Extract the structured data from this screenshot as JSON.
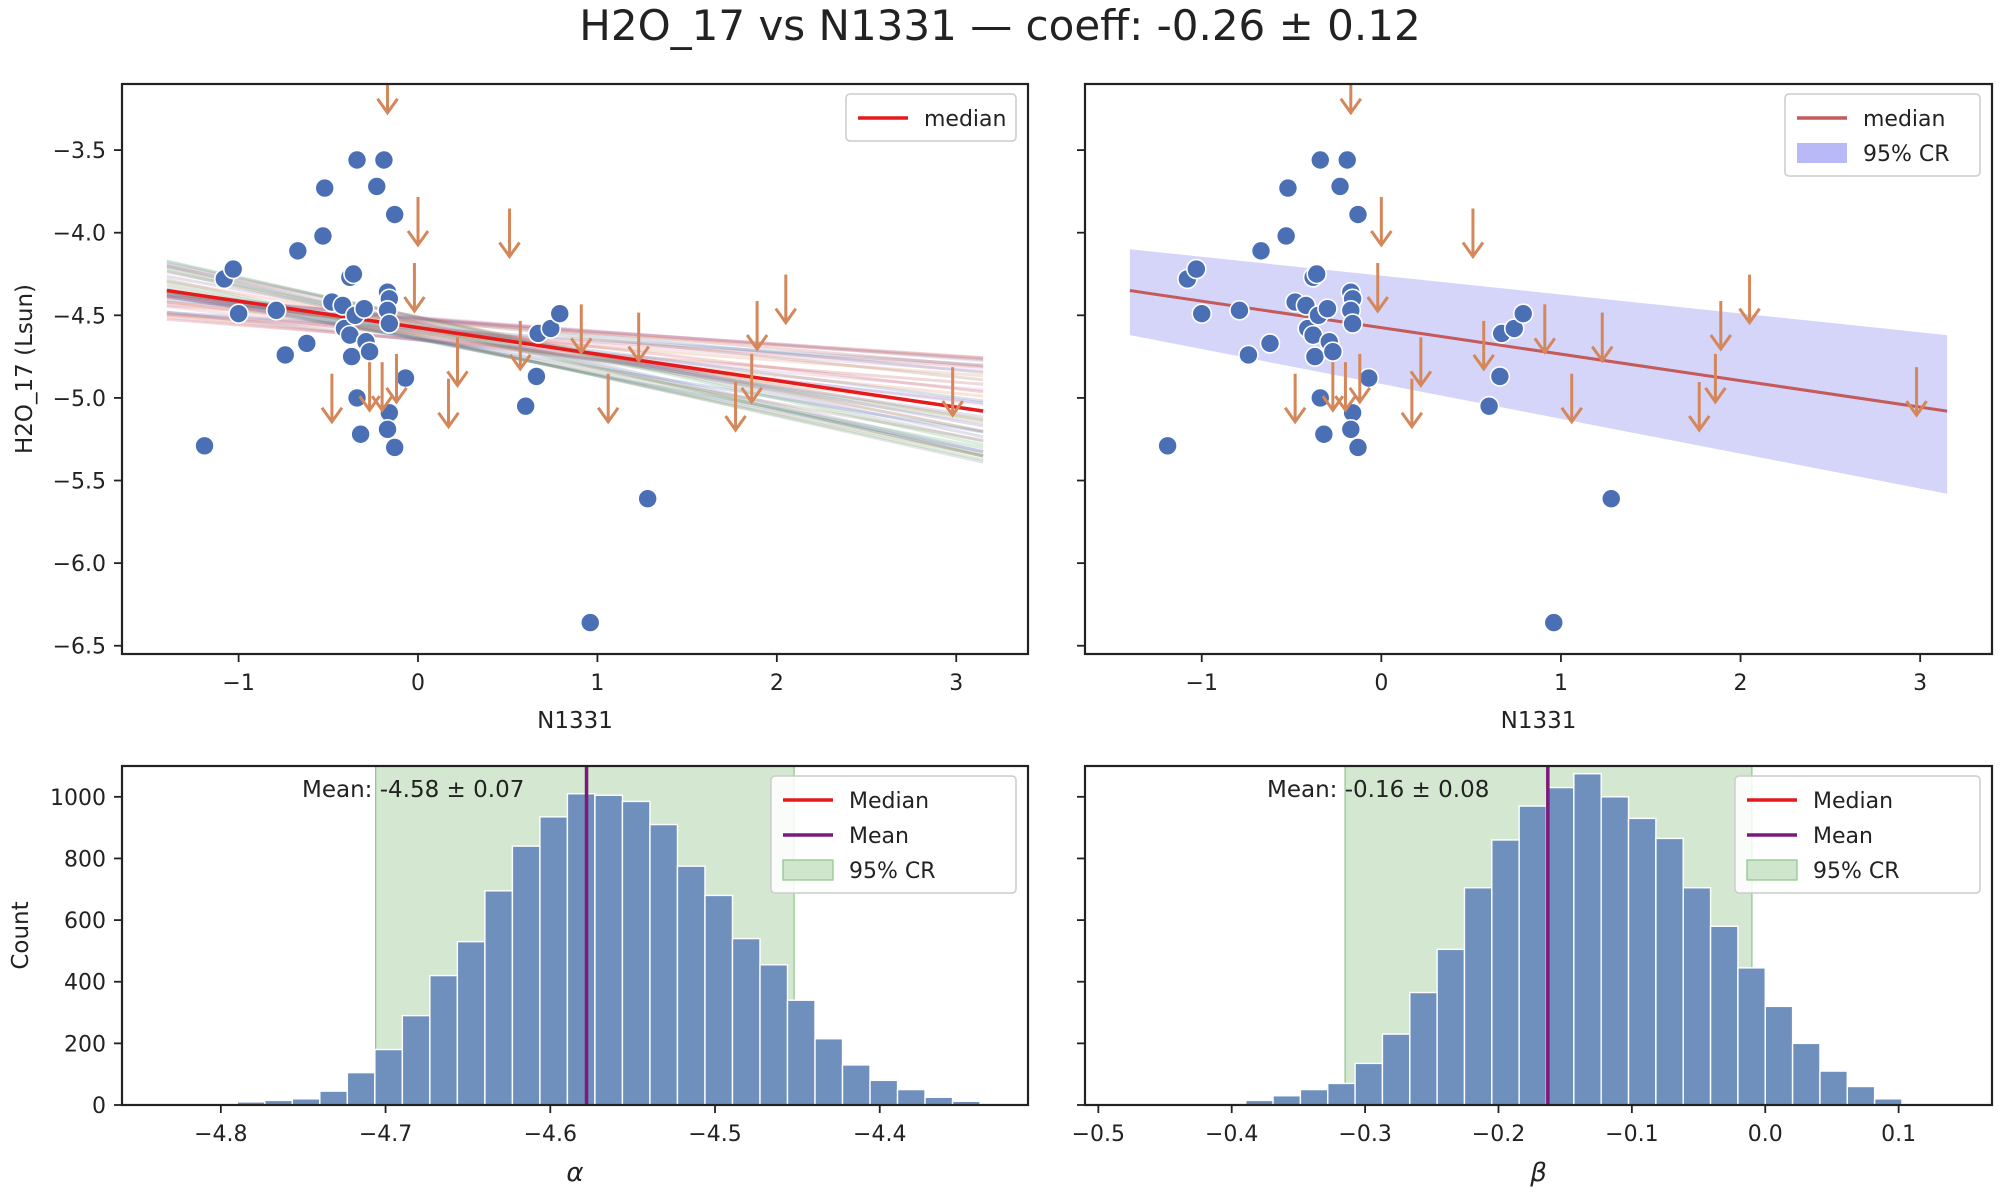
{
  "title": "H2O_17 vs N1331 — coeff: -0.26 ± 0.12",
  "colors": {
    "detected": "#4a6fb5",
    "upper_limit": "#d4875a",
    "median_red": "#e41a1c",
    "median_muted": "#c45a5a",
    "band": "#b9b9f7",
    "hist_fill": "#6f8fbd",
    "mean_line": "#7b1a7d",
    "cr_fill": "#cfe6cc",
    "cr_edge": "#8cc58a"
  },
  "chart_data": [
    {
      "type": "scatter",
      "panel": "top-left",
      "xlabel": "N1331",
      "ylabel": "H2O_17 (Lsun)",
      "xlim": [
        -1.65,
        3.4
      ],
      "ylim": [
        -6.55,
        -3.1
      ],
      "xticks": [
        "−1",
        "0",
        "1",
        "2",
        "3"
      ],
      "yticks": [
        "−3.5",
        "−4.0",
        "−4.5",
        "−5.0",
        "−5.5",
        "−6.0",
        "−6.5"
      ],
      "legend": [
        "median"
      ],
      "legend_position": "top-right",
      "median_line": {
        "x": [
          -1.4,
          3.15
        ],
        "y": [
          -4.35,
          -5.08
        ]
      },
      "detections": [
        [
          -1.19,
          -5.29
        ],
        [
          -1.08,
          -4.28
        ],
        [
          -1.03,
          -4.22
        ],
        [
          -1.0,
          -4.49
        ],
        [
          -0.79,
          -4.47
        ],
        [
          -0.74,
          -4.74
        ],
        [
          -0.67,
          -4.11
        ],
        [
          -0.62,
          -4.67
        ],
        [
          -0.52,
          -3.73
        ],
        [
          -0.53,
          -4.02
        ],
        [
          -0.48,
          -4.42
        ],
        [
          -0.42,
          -4.44
        ],
        [
          -0.41,
          -4.58
        ],
        [
          -0.38,
          -4.62
        ],
        [
          -0.37,
          -4.75
        ],
        [
          -0.38,
          -4.27
        ],
        [
          -0.36,
          -4.25
        ],
        [
          -0.34,
          -3.56
        ],
        [
          -0.35,
          -4.5
        ],
        [
          -0.34,
          -5.0
        ],
        [
          -0.32,
          -5.22
        ],
        [
          -0.29,
          -4.66
        ],
        [
          -0.27,
          -4.72
        ],
        [
          -0.23,
          -3.72
        ],
        [
          -0.19,
          -3.56
        ],
        [
          -0.17,
          -4.36
        ],
        [
          -0.16,
          -4.4
        ],
        [
          -0.17,
          -4.47
        ],
        [
          -0.16,
          -5.09
        ],
        [
          -0.17,
          -5.19
        ],
        [
          -0.13,
          -3.89
        ],
        [
          -0.13,
          -5.3
        ],
        [
          -0.07,
          -4.88
        ],
        [
          0.6,
          -5.05
        ],
        [
          0.66,
          -4.87
        ],
        [
          0.67,
          -4.61
        ],
        [
          0.74,
          -4.58
        ],
        [
          0.79,
          -4.49
        ],
        [
          0.96,
          -6.36
        ],
        [
          1.28,
          -5.61
        ],
        [
          -0.16,
          -4.55
        ],
        [
          -0.3,
          -4.46
        ]
      ],
      "upper_limits": [
        [
          -0.17,
          -3.25
        ],
        [
          0.0,
          -4.05
        ],
        [
          -0.02,
          -4.45
        ],
        [
          0.51,
          -4.12
        ],
        [
          -0.48,
          -5.12
        ],
        [
          -0.27,
          -5.05
        ],
        [
          -0.2,
          -5.05
        ],
        [
          -0.12,
          -5.0
        ],
        [
          0.22,
          -4.9
        ],
        [
          0.17,
          -5.15
        ],
        [
          0.57,
          -4.8
        ],
        [
          0.91,
          -4.7
        ],
        [
          1.06,
          -5.12
        ],
        [
          1.23,
          -4.75
        ],
        [
          1.77,
          -5.17
        ],
        [
          1.86,
          -5.0
        ],
        [
          1.89,
          -4.68
        ],
        [
          2.05,
          -4.52
        ],
        [
          2.98,
          -5.08
        ]
      ]
    },
    {
      "type": "scatter",
      "panel": "top-right",
      "xlabel": "N1331",
      "ylabel": "",
      "xlim": [
        -1.65,
        3.4
      ],
      "ylim": [
        -6.55,
        -3.1
      ],
      "xticks": [
        "−1",
        "0",
        "1",
        "2",
        "3"
      ],
      "legend": [
        "median",
        "95% CR"
      ],
      "legend_position": "top-right",
      "band": {
        "x": [
          -1.4,
          3.15
        ],
        "upper": [
          -4.1,
          -4.62
        ],
        "lower": [
          -4.62,
          -5.58
        ]
      },
      "same_data_as": "top-left"
    },
    {
      "type": "bar",
      "panel": "bottom-left",
      "xlabel": "α",
      "ylabel": "Count",
      "xlim": [
        -4.86,
        -4.31
      ],
      "ylim": [
        0,
        1100
      ],
      "xticks": [
        "−4.8",
        "−4.7",
        "−4.6",
        "−4.5",
        "−4.4"
      ],
      "yticks": [
        "0",
        "200",
        "400",
        "600",
        "800",
        "1000"
      ],
      "annotation": "Mean: -4.58 ± 0.07",
      "legend": [
        "Median",
        "Mean",
        "95% CR"
      ],
      "legend_position": "top-right",
      "mean": -4.578,
      "cr": [
        -4.706,
        -4.452
      ],
      "bin_start": -4.79,
      "bin_width": 0.0167,
      "counts": [
        10,
        15,
        20,
        45,
        105,
        180,
        290,
        420,
        530,
        695,
        840,
        935,
        1010,
        1005,
        985,
        910,
        775,
        680,
        540,
        455,
        340,
        215,
        130,
        80,
        50,
        25,
        12,
        5
      ]
    },
    {
      "type": "bar",
      "panel": "bottom-right",
      "xlabel": "β",
      "ylabel": "",
      "xlim": [
        -0.51,
        0.17
      ],
      "ylim": [
        0,
        1100
      ],
      "xticks": [
        "−0.5",
        "−0.4",
        "−0.3",
        "−0.2",
        "−0.1",
        "0.0",
        "0.1"
      ],
      "annotation": "Mean: -0.16 ± 0.08",
      "legend": [
        "Median",
        "Mean",
        "95% CR"
      ],
      "legend_position": "top-right",
      "mean": -0.163,
      "cr": [
        -0.315,
        -0.01
      ],
      "bin_start": -0.41,
      "bin_width": 0.0205,
      "counts": [
        5,
        15,
        30,
        50,
        70,
        135,
        230,
        365,
        505,
        705,
        860,
        970,
        1030,
        1075,
        1000,
        930,
        865,
        705,
        580,
        445,
        320,
        200,
        110,
        60,
        20
      ]
    }
  ]
}
